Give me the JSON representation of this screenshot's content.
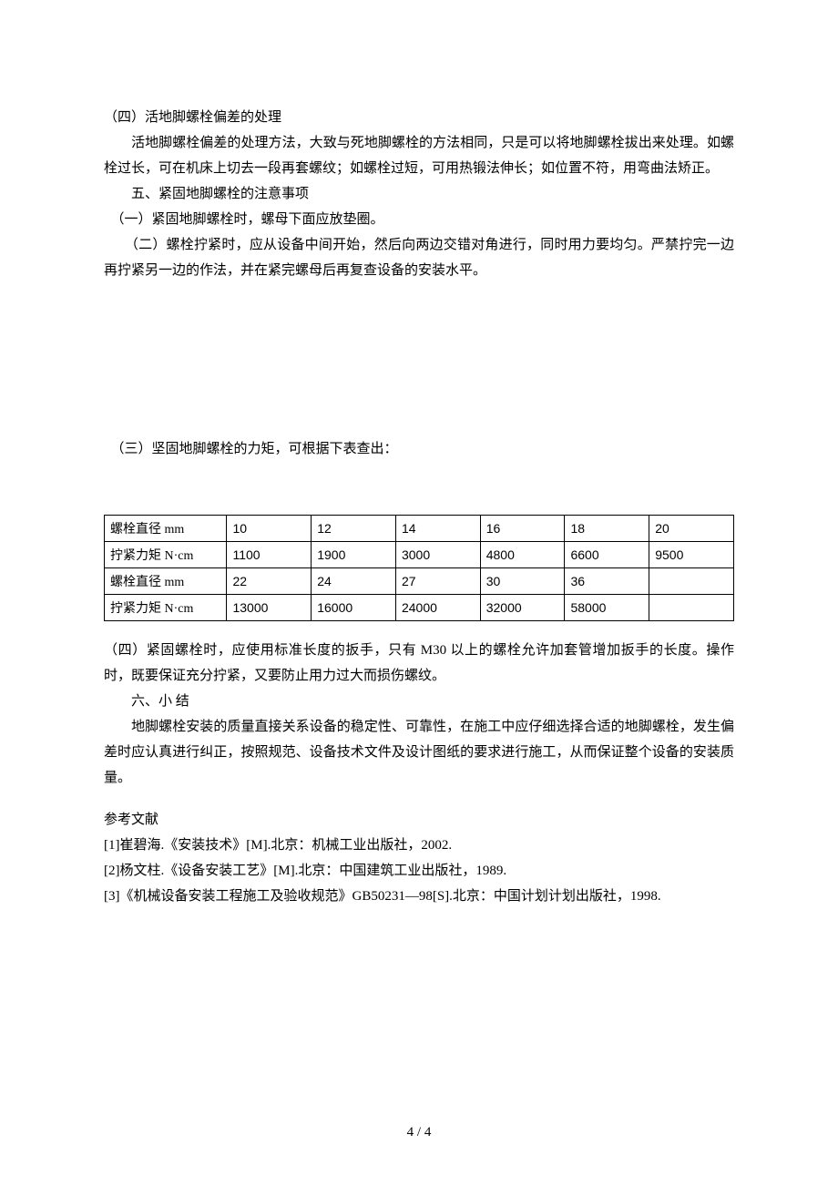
{
  "body": {
    "section4_heading": "（四）活地脚螺栓偏差的处理",
    "section4_p1": "　　活地脚螺栓偏差的处理方法，大致与死地脚螺栓的方法相同，只是可以将地脚螺栓拔出来处理。如螺栓过长，可在机床上切去一段再套螺纹；如螺栓过短，可用热锻法伸长；如位置不符，用弯曲法矫正。",
    "section5_heading": "　　五、紧固地脚螺栓的注意事项",
    "section5_item1": "　（一）紧固地脚螺栓时，螺母下面应放垫圈。",
    "section5_item2": "　　（二）螺栓拧紧时，应从设备中间开始，然后向两边交错对角进行，同时用力要均匀。严禁拧完一边再拧紧另一边的作法，并在紧完螺母后再复查设备的安装水平。",
    "section5_item3": "　（三）坚固地脚螺栓的力矩，可根据下表查出：",
    "section5_item4": "（四）紧固螺栓时，应使用标准长度的扳手，只有 M30 以上的螺栓允许加套管增加扳手的长度。操作时，既要保证充分拧紧，又要防止用力过大而损伤螺纹。",
    "section6_heading": "　　六、小  结",
    "section6_p1": "　　地脚螺栓安装的质量直接关系设备的稳定性、可靠性，在施工中应仔细选择合适的地脚螺栓，发生偏差时应认真进行纠正，按照规范、设备技术文件及设计图纸的要求进行施工，从而保证整个设备的安装质量。"
  },
  "table": {
    "row1_label": "螺栓直径 mm",
    "row2_label": "拧紧力矩 N·cm",
    "row3_label": "螺栓直径 mm",
    "row4_label": "拧紧力矩 N·cm",
    "row1": [
      "10",
      "12",
      "14",
      "16",
      "18",
      "20"
    ],
    "row2": [
      "1100",
      "1900",
      "3000",
      "4800",
      "6600",
      "9500"
    ],
    "row3": [
      "22",
      "24",
      "27",
      "30",
      "36",
      ""
    ],
    "row4": [
      "13000",
      "16000",
      "24000",
      "32000",
      "58000",
      ""
    ],
    "border_color": "#000000",
    "cell_fontsize": 14
  },
  "references": {
    "heading": "参考文献",
    "items": [
      "[1]崔碧海.《安装技术》[M].北京：机械工业出版社，2002.",
      "[2]杨文柱.《设备安装工艺》[M].北京：中国建筑工业出版社，1989.",
      "[3]《机械设备安装工程施工及验收规范》GB50231—98[S].北京：中国计划计划出版社，1998."
    ]
  },
  "page_number": "4 / 4",
  "colors": {
    "text": "#000000",
    "background": "#ffffff"
  },
  "typography": {
    "body_fontsize": 15,
    "line_height": 28,
    "font_family": "SimSun"
  }
}
